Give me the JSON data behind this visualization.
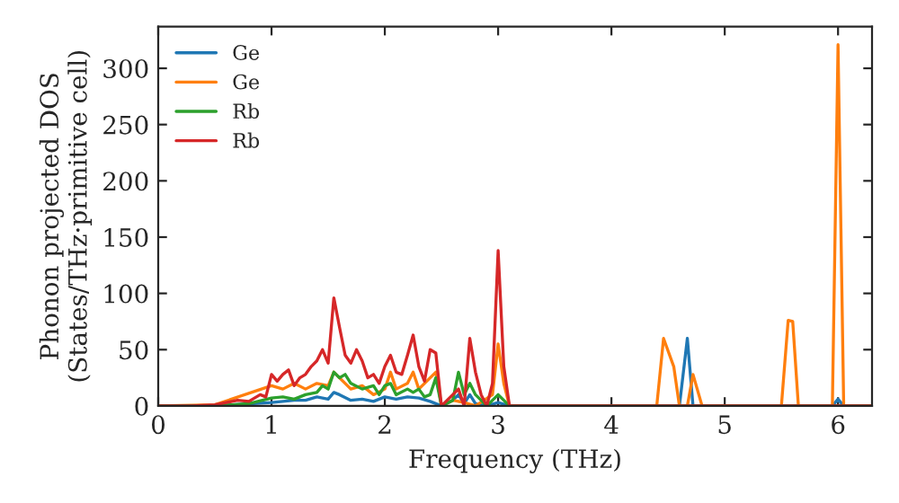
{
  "chart_data": {
    "type": "line",
    "xlabel": "Frequency (THz)",
    "ylabel": "Phonon projected DOS\n(States/THz·primitive cell)",
    "xlim": [
      0,
      6.3
    ],
    "ylim": [
      0,
      337
    ],
    "xticks": [
      0,
      1,
      2,
      3,
      4,
      5,
      6
    ],
    "yticks": [
      0,
      50,
      100,
      150,
      200,
      250,
      300
    ],
    "grid": false,
    "legend": "top left",
    "marker": "none",
    "line_style": "solid",
    "series": [
      {
        "name": "Ge",
        "color": "#1f77b4",
        "x": [
          0,
          0.5,
          1.0,
          1.2,
          1.3,
          1.4,
          1.5,
          1.55,
          1.6,
          1.7,
          1.8,
          1.9,
          2.0,
          2.1,
          2.2,
          2.3,
          2.4,
          2.5,
          2.6,
          2.65,
          2.7,
          2.75,
          2.8,
          2.9,
          3.0,
          3.1,
          4.6,
          4.67,
          4.72,
          5.95,
          6.0,
          6.05,
          6.3
        ],
        "values": [
          0,
          0,
          3,
          5,
          5,
          8,
          6,
          12,
          10,
          5,
          6,
          4,
          8,
          6,
          8,
          7,
          4,
          0,
          5,
          10,
          2,
          10,
          2,
          0,
          3,
          0,
          0,
          60,
          0,
          0,
          6,
          0,
          0
        ]
      },
      {
        "name": "Ge",
        "color": "#ff7f0e",
        "x": [
          0,
          0.5,
          1.0,
          1.1,
          1.2,
          1.3,
          1.4,
          1.5,
          1.55,
          1.6,
          1.7,
          1.8,
          1.9,
          2.0,
          2.05,
          2.1,
          2.2,
          2.25,
          2.3,
          2.4,
          2.45,
          2.5,
          2.6,
          2.7,
          2.8,
          2.95,
          3.0,
          3.05,
          3.1,
          4.4,
          4.46,
          4.55,
          4.6,
          4.67,
          4.72,
          4.8,
          5.5,
          5.56,
          5.6,
          5.65,
          5.95,
          6.0,
          6.05,
          6.3
        ],
        "values": [
          0,
          1,
          18,
          15,
          20,
          15,
          20,
          18,
          30,
          25,
          15,
          18,
          10,
          15,
          30,
          15,
          20,
          30,
          15,
          25,
          30,
          0,
          5,
          3,
          0,
          10,
          55,
          20,
          0,
          0,
          60,
          35,
          0,
          0,
          28,
          0,
          0,
          76,
          75,
          0,
          0,
          321,
          0,
          0
        ]
      },
      {
        "name": "Rb",
        "color": "#2ca02c",
        "x": [
          0,
          0.5,
          0.8,
          1.0,
          1.1,
          1.2,
          1.3,
          1.4,
          1.45,
          1.5,
          1.55,
          1.6,
          1.65,
          1.7,
          1.8,
          1.9,
          1.95,
          2.0,
          2.05,
          2.1,
          2.2,
          2.25,
          2.3,
          2.35,
          2.4,
          2.45,
          2.5,
          2.6,
          2.65,
          2.7,
          2.75,
          2.8,
          2.9,
          3.0,
          3.05,
          3.1,
          6.3
        ],
        "values": [
          0,
          0,
          2,
          7,
          8,
          6,
          10,
          12,
          18,
          15,
          30,
          25,
          28,
          20,
          15,
          18,
          10,
          18,
          20,
          10,
          15,
          12,
          15,
          8,
          10,
          25,
          0,
          5,
          30,
          10,
          20,
          10,
          0,
          10,
          5,
          0,
          0
        ]
      },
      {
        "name": "Rb",
        "color": "#d62728",
        "x": [
          0,
          0.3,
          0.5,
          0.7,
          0.8,
          0.9,
          0.95,
          1.0,
          1.05,
          1.1,
          1.15,
          1.2,
          1.25,
          1.3,
          1.35,
          1.4,
          1.45,
          1.5,
          1.55,
          1.6,
          1.65,
          1.7,
          1.75,
          1.8,
          1.85,
          1.9,
          1.95,
          2.0,
          2.05,
          2.1,
          2.15,
          2.2,
          2.25,
          2.3,
          2.35,
          2.4,
          2.45,
          2.5,
          2.55,
          2.6,
          2.65,
          2.7,
          2.75,
          2.8,
          2.85,
          2.9,
          2.95,
          3.0,
          3.05,
          3.1,
          6.3
        ],
        "values": [
          0,
          0,
          1,
          5,
          4,
          10,
          8,
          28,
          22,
          28,
          32,
          18,
          25,
          28,
          35,
          40,
          50,
          38,
          96,
          70,
          45,
          38,
          50,
          40,
          25,
          28,
          20,
          35,
          45,
          30,
          28,
          45,
          63,
          35,
          22,
          50,
          47,
          0,
          5,
          10,
          15,
          0,
          60,
          30,
          10,
          0,
          20,
          138,
          35,
          0,
          0
        ]
      }
    ]
  }
}
